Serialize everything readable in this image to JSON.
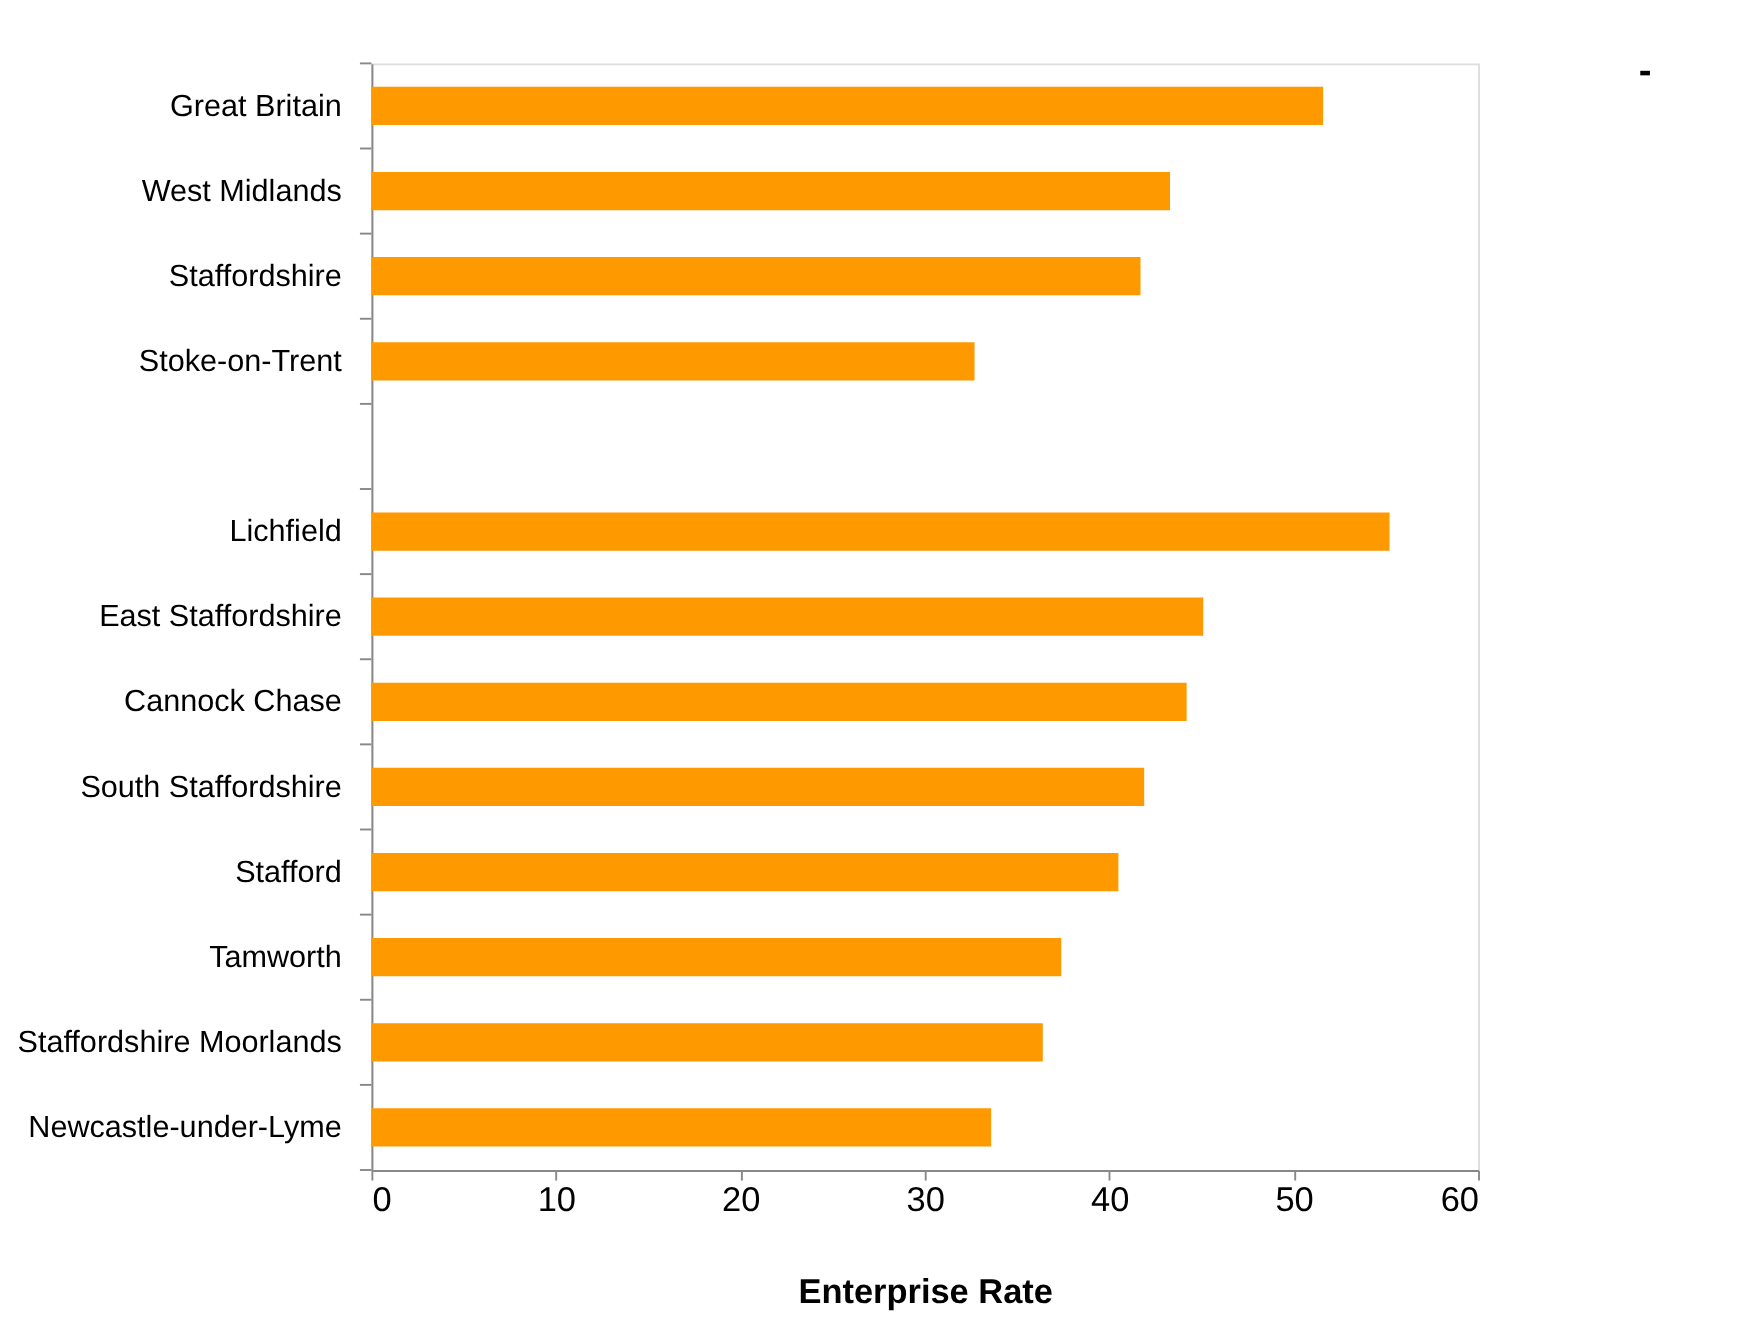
{
  "chart_data": {
    "type": "bar",
    "orientation": "horizontal",
    "xlabel": "Enterprise Rate",
    "categories": [
      "Great Britain",
      "West Midlands",
      "Staffordshire",
      "Stoke-on-Trent",
      null,
      "Lichfield",
      "East Staffordshire",
      "Cannock Chase",
      "South Staffordshire",
      "Stafford",
      "Tamworth",
      "Staffordshire Moorlands",
      "Newcastle-under-Lyme"
    ],
    "values": [
      51.6,
      43.3,
      41.7,
      32.7,
      null,
      55.2,
      45.1,
      44.2,
      41.9,
      40.5,
      37.4,
      36.4,
      33.6
    ],
    "color": "#ff9900",
    "xlim": [
      0,
      60
    ],
    "xticks": [
      0,
      10,
      20,
      30,
      40,
      50,
      60
    ],
    "grid": false,
    "annotations": [
      "-"
    ]
  }
}
